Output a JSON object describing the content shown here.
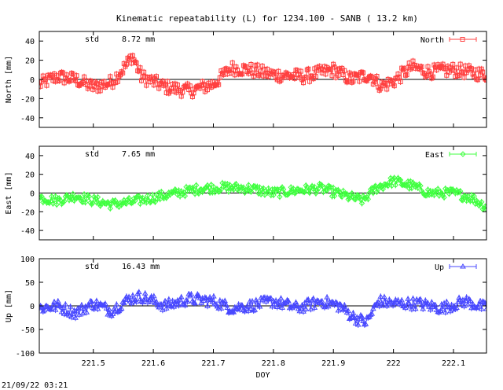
{
  "title": "Kinematic repeatability (L) for 1234.100 - SANB  ( 13.2 km)",
  "footer_timestamp": "21/09/22 03:21",
  "chart_data": [
    {
      "type": "line",
      "name": "north",
      "series": [
        {
          "name": "North",
          "color": "#ff4040",
          "marker": "square"
        }
      ],
      "ylabel": "North [mm]",
      "xlabel": "",
      "stat_label": "std",
      "stat_value": "8.72 mm",
      "xlim": [
        221.41,
        222.155
      ],
      "ylim": [
        -50,
        50
      ],
      "yticks": [
        -40,
        -20,
        0,
        20,
        40
      ],
      "legend": "top-right",
      "zero_line": true,
      "trend": {
        "x": [
          221.41,
          221.44,
          221.47,
          221.5,
          221.53,
          221.555,
          221.565,
          221.58,
          221.62,
          221.66,
          221.7,
          221.73,
          221.76,
          221.8,
          221.85,
          221.9,
          221.93,
          221.96,
          221.98,
          222.0,
          222.03,
          222.06,
          222.1,
          222.155
        ],
        "y": [
          -5,
          3,
          0,
          -8,
          -3,
          15,
          25,
          3,
          -8,
          -12,
          -5,
          12,
          10,
          5,
          3,
          10,
          0,
          5,
          -7,
          -2,
          13,
          8,
          10,
          5
        ]
      },
      "noise": 7
    },
    {
      "type": "line",
      "name": "east",
      "series": [
        {
          "name": "East",
          "color": "#40ff40",
          "marker": "diamond"
        }
      ],
      "ylabel": "East [mm]",
      "xlabel": "",
      "stat_label": "std",
      "stat_value": "7.65 mm",
      "xlim": [
        221.41,
        222.155
      ],
      "ylim": [
        -50,
        50
      ],
      "yticks": [
        -40,
        -20,
        0,
        20,
        40
      ],
      "legend": "top-right",
      "zero_line": true,
      "trend": {
        "x": [
          221.41,
          221.44,
          221.47,
          221.5,
          221.53,
          221.56,
          221.6,
          221.64,
          221.68,
          221.72,
          221.76,
          221.8,
          221.84,
          221.88,
          221.92,
          221.95,
          221.97,
          222.0,
          222.03,
          222.06,
          222.1,
          222.13,
          222.155
        ],
        "y": [
          -5,
          -8,
          -3,
          -8,
          -12,
          -10,
          -5,
          0,
          5,
          6,
          5,
          0,
          3,
          5,
          -3,
          -8,
          5,
          13,
          8,
          0,
          0,
          -5,
          -15
        ]
      },
      "noise": 5
    },
    {
      "type": "line",
      "name": "up",
      "series": [
        {
          "name": "Up",
          "color": "#4848ff",
          "marker": "triangle"
        }
      ],
      "ylabel": "Up [mm]",
      "xlabel": "DOY",
      "stat_label": "std",
      "stat_value": "16.43 mm",
      "xlim": [
        221.41,
        222.155
      ],
      "ylim": [
        -100,
        100
      ],
      "yticks": [
        -100,
        -50,
        0,
        50,
        100
      ],
      "xticks": [
        221.5,
        221.6,
        221.7,
        221.8,
        221.9,
        222,
        222.1
      ],
      "legend": "top-right",
      "zero_line": true,
      "trend": {
        "x": [
          221.41,
          221.44,
          221.47,
          221.5,
          221.53,
          221.56,
          221.58,
          221.62,
          221.66,
          221.7,
          221.73,
          221.76,
          221.8,
          221.84,
          221.88,
          221.91,
          221.935,
          221.955,
          221.975,
          222.0,
          222.04,
          222.08,
          222.12,
          222.155
        ],
        "y": [
          -5,
          0,
          -15,
          5,
          -10,
          15,
          20,
          0,
          15,
          10,
          -5,
          0,
          10,
          -5,
          10,
          0,
          -25,
          -35,
          10,
          5,
          5,
          -5,
          10,
          -5
        ]
      },
      "noise": 12
    }
  ]
}
